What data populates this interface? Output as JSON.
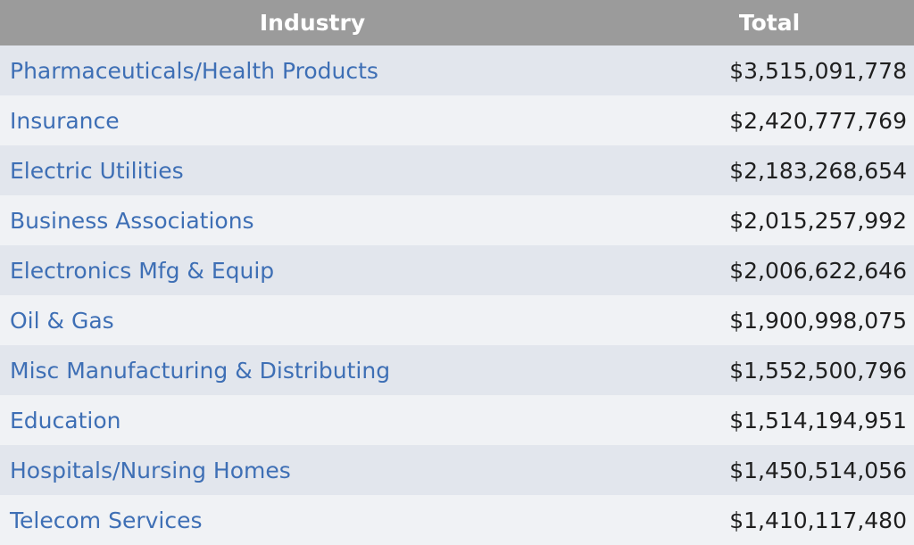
{
  "table": {
    "headers": {
      "industry": "Industry",
      "total": "Total"
    },
    "rows": [
      {
        "industry": "Pharmaceuticals/Health Products",
        "total": "$3,515,091,778"
      },
      {
        "industry": "Insurance",
        "total": "$2,420,777,769"
      },
      {
        "industry": "Electric Utilities",
        "total": "$2,183,268,654"
      },
      {
        "industry": "Business Associations",
        "total": "$2,015,257,992"
      },
      {
        "industry": "Electronics Mfg & Equip",
        "total": "$2,006,622,646"
      },
      {
        "industry": "Oil & Gas",
        "total": "$1,900,998,075"
      },
      {
        "industry": "Misc Manufacturing & Distributing",
        "total": "$1,552,500,796"
      },
      {
        "industry": "Education",
        "total": "$1,514,194,951"
      },
      {
        "industry": "Hospitals/Nursing Homes",
        "total": "$1,450,514,056"
      },
      {
        "industry": "Telecom Services",
        "total": "$1,410,117,480"
      }
    ]
  },
  "colors": {
    "header_bg": "#9b9b9b",
    "link": "#3e6fb5",
    "row_odd": "#e2e6ed",
    "row_even": "#f0f2f5"
  }
}
